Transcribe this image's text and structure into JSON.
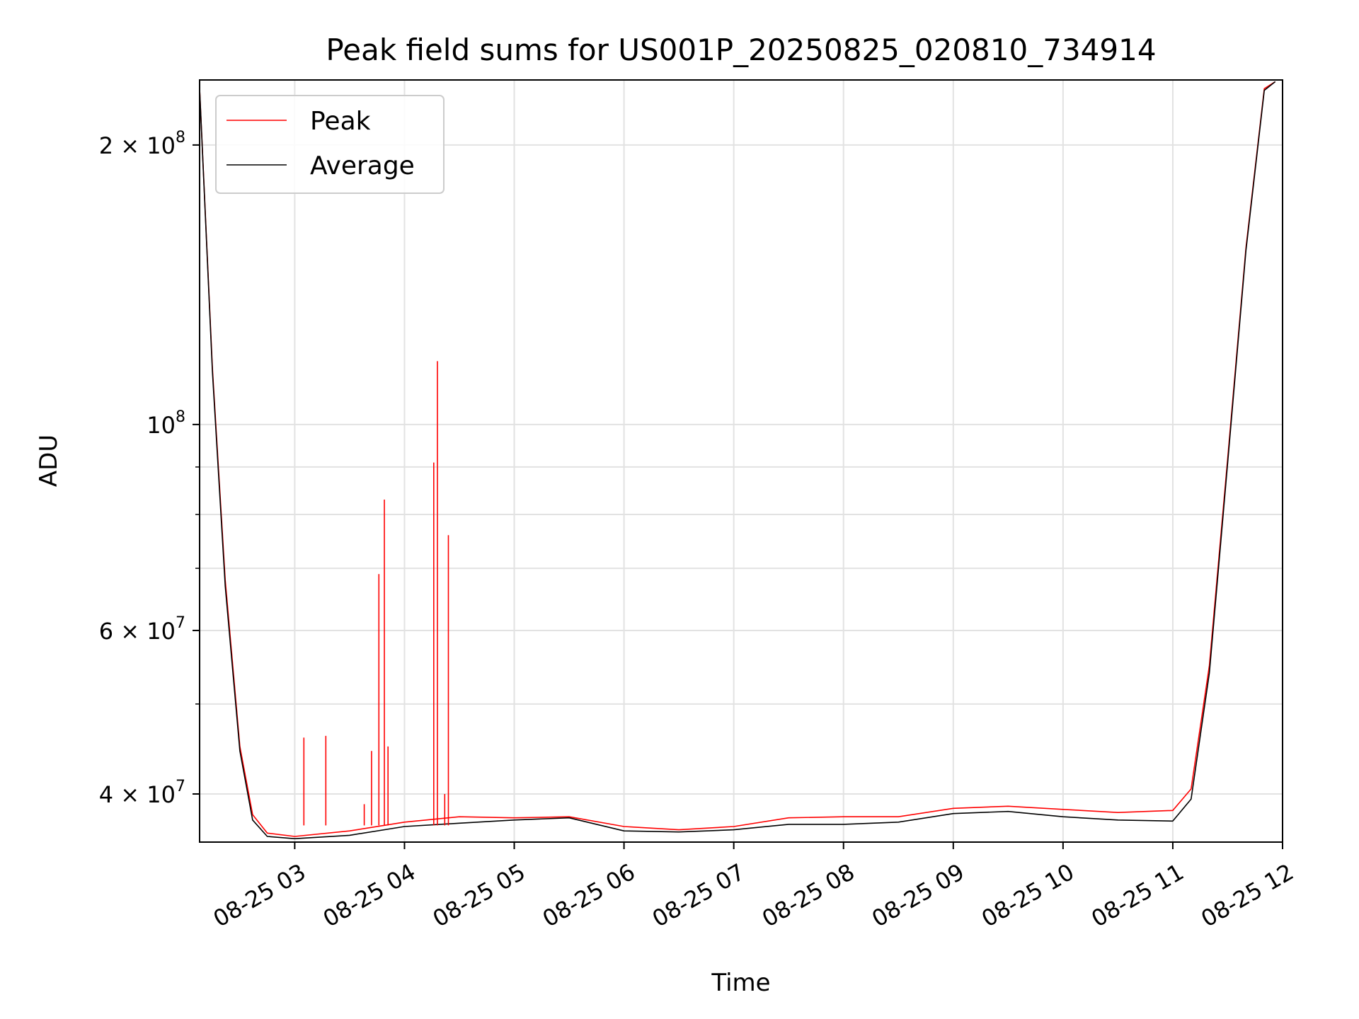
{
  "chart_data": {
    "type": "line",
    "title": "Peak field sums for US001P_20250825_020810_734914",
    "xlabel": "Time",
    "ylabel": "ADU",
    "yscale": "log",
    "xlim": [
      "08-25 02:08",
      "08-25 12:00"
    ],
    "ylim": [
      35500000,
      235000000
    ],
    "grid": true,
    "legend_position": "top-left",
    "x_ticks": [
      "08-25 03",
      "08-25 04",
      "08-25 05",
      "08-25 06",
      "08-25 07",
      "08-25 08",
      "08-25 09",
      "08-25 10",
      "08-25 11",
      "08-25 12"
    ],
    "y_ticks_major": [
      {
        "value": 40000000,
        "mantissa": "4",
        "exp": "7"
      },
      {
        "value": 60000000,
        "mantissa": "6",
        "exp": "7"
      },
      {
        "value": 100000000,
        "mantissa": "",
        "exp": "8"
      },
      {
        "value": 200000000,
        "mantissa": "2",
        "exp": "8"
      }
    ],
    "y_ticks_minor": [
      50000000,
      70000000,
      80000000,
      90000000
    ],
    "x": [
      "08-25 02:08",
      "08-25 02:15",
      "08-25 02:22",
      "08-25 02:30",
      "08-25 02:37",
      "08-25 02:45",
      "08-25 03:00",
      "08-25 03:30",
      "08-25 04:00",
      "08-25 04:30",
      "08-25 05:00",
      "08-25 05:30",
      "08-25 06:00",
      "08-25 06:30",
      "08-25 07:00",
      "08-25 07:30",
      "08-25 08:00",
      "08-25 08:30",
      "08-25 09:00",
      "08-25 09:30",
      "08-25 10:00",
      "08-25 10:30",
      "08-25 11:00",
      "08-25 11:10",
      "08-25 11:20",
      "08-25 11:30",
      "08-25 11:40",
      "08-25 11:50",
      "08-25 11:56"
    ],
    "series": [
      {
        "name": "Peak",
        "color": "#ff0000",
        "values": [
          230000000,
          115000000,
          68000000,
          45000000,
          38000000,
          36300000,
          36000000,
          36500000,
          37300000,
          37800000,
          37700000,
          37800000,
          36900000,
          36600000,
          36900000,
          37700000,
          37800000,
          37800000,
          38600000,
          38800000,
          38500000,
          38200000,
          38400000,
          40500000,
          55000000,
          92000000,
          155000000,
          230000000,
          234000000
        ],
        "spikes": [
          {
            "x": "08-25 03:05",
            "value": 46000000
          },
          {
            "x": "08-25 03:17",
            "value": 46200000
          },
          {
            "x": "08-25 03:38",
            "value": 39000000
          },
          {
            "x": "08-25 03:42",
            "value": 44500000
          },
          {
            "x": "08-25 03:46",
            "value": 69000000
          },
          {
            "x": "08-25 03:49",
            "value": 83000000
          },
          {
            "x": "08-25 03:51",
            "value": 45000000
          },
          {
            "x": "08-25 04:16",
            "value": 91000000
          },
          {
            "x": "08-25 04:18",
            "value": 117000000
          },
          {
            "x": "08-25 04:22",
            "value": 40000000
          },
          {
            "x": "08-25 04:24",
            "value": 76000000
          }
        ]
      },
      {
        "name": "Average",
        "color": "#000000",
        "values": [
          230000000,
          114000000,
          67000000,
          44500000,
          37500000,
          36000000,
          35800000,
          36100000,
          36900000,
          37200000,
          37500000,
          37700000,
          36500000,
          36400000,
          36600000,
          37100000,
          37100000,
          37300000,
          38100000,
          38300000,
          37800000,
          37500000,
          37400000,
          39500000,
          54000000,
          91000000,
          154000000,
          229000000,
          234000000
        ]
      }
    ]
  }
}
